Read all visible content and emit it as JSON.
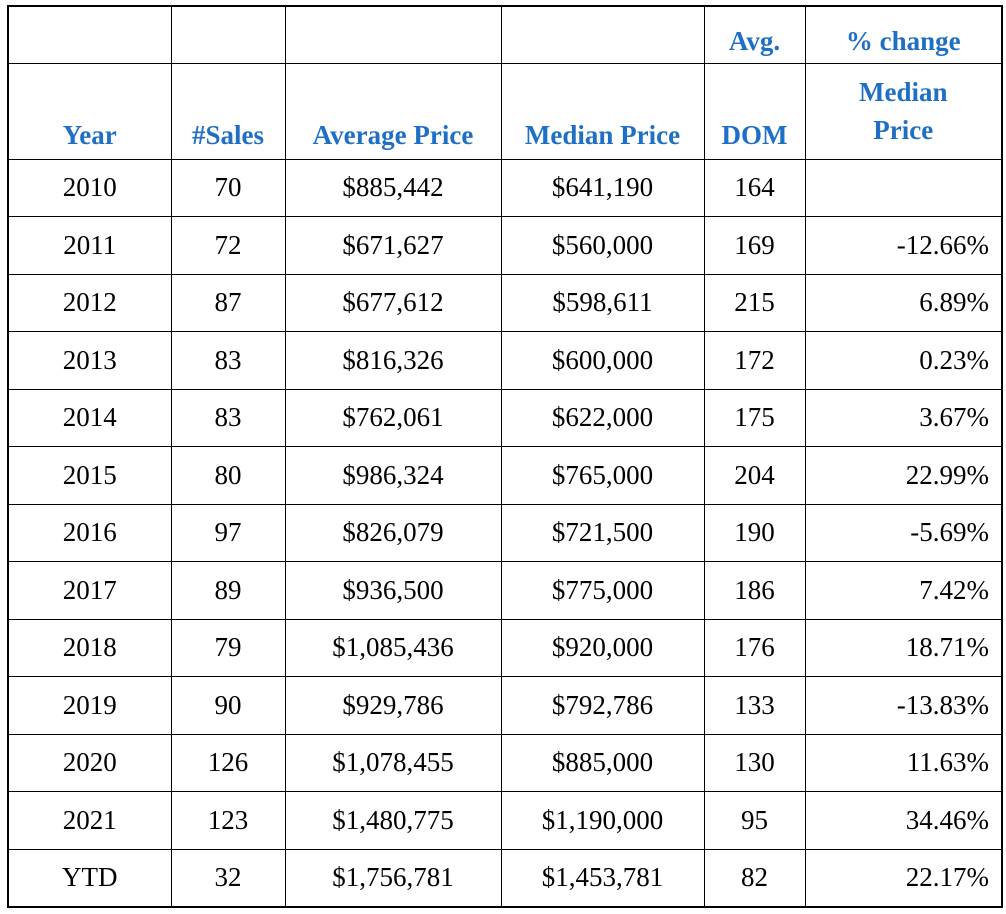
{
  "table": {
    "header_row1": [
      "",
      "",
      "",
      "",
      "Avg.",
      "% change"
    ],
    "header_row2": {
      "year": "Year",
      "sales": "#Sales",
      "avg_price": "Average Price",
      "median_price": "Median Price",
      "dom": "DOM",
      "pct_line1": "Median",
      "pct_line2": "Price"
    },
    "rows": [
      {
        "year": "2010",
        "sales": "70",
        "avg": "$885,442",
        "median": "$641,190",
        "dom": "164",
        "pct": ""
      },
      {
        "year": "2011",
        "sales": "72",
        "avg": "$671,627",
        "median": "$560,000",
        "dom": "169",
        "pct": "-12.66%"
      },
      {
        "year": "2012",
        "sales": "87",
        "avg": "$677,612",
        "median": "$598,611",
        "dom": "215",
        "pct": "6.89%"
      },
      {
        "year": "2013",
        "sales": "83",
        "avg": "$816,326",
        "median": "$600,000",
        "dom": "172",
        "pct": "0.23%"
      },
      {
        "year": "2014",
        "sales": "83",
        "avg": "$762,061",
        "median": "$622,000",
        "dom": "175",
        "pct": "3.67%"
      },
      {
        "year": "2015",
        "sales": "80",
        "avg": "$986,324",
        "median": "$765,000",
        "dom": "204",
        "pct": "22.99%"
      },
      {
        "year": "2016",
        "sales": "97",
        "avg": "$826,079",
        "median": "$721,500",
        "dom": "190",
        "pct": "-5.69%"
      },
      {
        "year": "2017",
        "sales": "89",
        "avg": "$936,500",
        "median": "$775,000",
        "dom": "186",
        "pct": "7.42%"
      },
      {
        "year": "2018",
        "sales": "79",
        "avg": "$1,085,436",
        "median": "$920,000",
        "dom": "176",
        "pct": "18.71%"
      },
      {
        "year": "2019",
        "sales": "90",
        "avg": "$929,786",
        "median": "$792,786",
        "dom": "133",
        "pct": "-13.83%"
      },
      {
        "year": "2020",
        "sales": "126",
        "avg": "$1,078,455",
        "median": "$885,000",
        "dom": "130",
        "pct": "11.63%"
      },
      {
        "year": "2021",
        "sales": "123",
        "avg": "$1,480,775",
        "median": "$1,190,000",
        "dom": "95",
        "pct": "34.46%"
      },
      {
        "year": "YTD",
        "sales": "32",
        "avg": "$1,756,781",
        "median": "$1,453,781",
        "dom": "82",
        "pct": "22.17%"
      }
    ]
  },
  "colors": {
    "header_text": "#1f6fc5",
    "body_text": "#000000",
    "border": "#000000"
  }
}
